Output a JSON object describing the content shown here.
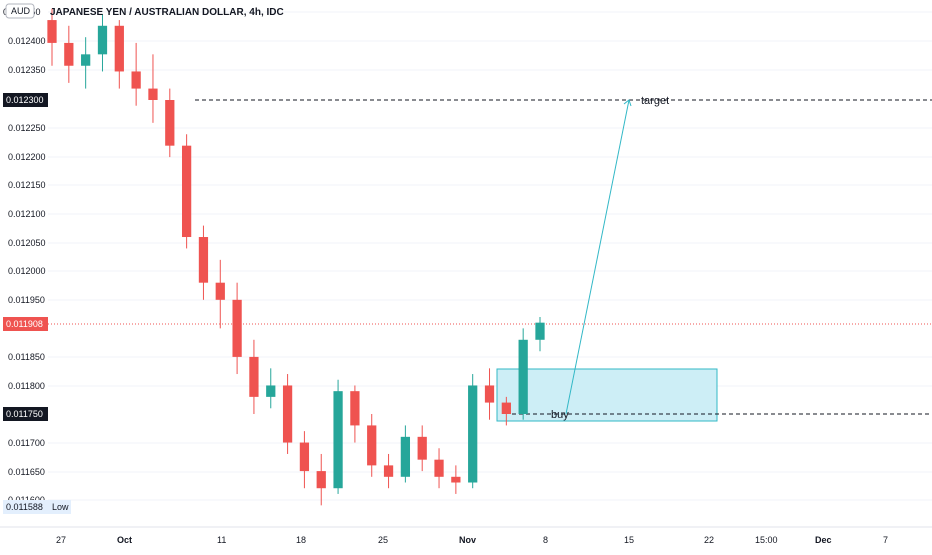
{
  "header": {
    "currency_badge": "AUD",
    "title": "JAPANESE YEN / AUSTRALIAN DOLLAR, 4h, IDC"
  },
  "price_axis": {
    "ticks": [
      "0.012450",
      "0.012400",
      "0.012350",
      "0.012250",
      "0.012200",
      "0.012150",
      "0.012100",
      "0.012050",
      "0.012000",
      "0.011950",
      "0.011850",
      "0.011800",
      "0.011700",
      "0.011650",
      "0.011600"
    ],
    "badges": {
      "target_level": "0.012300",
      "current_price": "0.011908",
      "buy_level": "0.011750",
      "low_value": "0.011588",
      "low_label": "Low"
    }
  },
  "time_axis": {
    "labels": [
      "27",
      "Oct",
      "11",
      "18",
      "25",
      "Nov",
      "8",
      "15",
      "22",
      "15:00",
      "Dec",
      "7"
    ]
  },
  "annotations": {
    "target_label": "target",
    "buy_label": "buy"
  },
  "colors": {
    "up": "#26a69a",
    "down": "#ef5350",
    "box_fill": "#cdeef6",
    "box_border": "#32b8c6",
    "arrow": "#32b8c6",
    "current_price_badge": "#ef5350",
    "level_badge": "#131722",
    "low_badge": "#e3effd"
  },
  "chart_data": {
    "type": "candlestick",
    "title": "JAPANESE YEN / AUSTRALIAN DOLLAR, 4h, IDC",
    "xlabel": "",
    "ylabel": "",
    "x_axis_labels": [
      "27",
      "Oct",
      "11",
      "18",
      "25",
      "Nov",
      "8",
      "15",
      "22",
      "15:00",
      "Dec",
      "7"
    ],
    "ylim": [
      0.0116,
      0.01245
    ],
    "price_series": [
      {
        "date": "Sep 28",
        "open": 0.01244,
        "high": 0.01246,
        "low": 0.01236,
        "close": 0.0124
      },
      {
        "date": "Oct 1",
        "open": 0.0124,
        "high": 0.01243,
        "low": 0.01233,
        "close": 0.01236
      },
      {
        "date": "Oct 4",
        "open": 0.01236,
        "high": 0.01241,
        "low": 0.01232,
        "close": 0.01238
      },
      {
        "date": "Oct 6",
        "open": 0.01238,
        "high": 0.01245,
        "low": 0.01235,
        "close": 0.01243
      },
      {
        "date": "Oct 8",
        "open": 0.01243,
        "high": 0.01244,
        "low": 0.01232,
        "close": 0.01235
      },
      {
        "date": "Oct 9",
        "open": 0.01235,
        "high": 0.0124,
        "low": 0.01229,
        "close": 0.01232
      },
      {
        "date": "Oct 10",
        "open": 0.01232,
        "high": 0.01238,
        "low": 0.01226,
        "close": 0.0123
      },
      {
        "date": "Oct 12",
        "open": 0.0123,
        "high": 0.01232,
        "low": 0.0122,
        "close": 0.01222
      },
      {
        "date": "Oct 13",
        "open": 0.01222,
        "high": 0.01224,
        "low": 0.01204,
        "close": 0.01206
      },
      {
        "date": "Oct 14",
        "open": 0.01206,
        "high": 0.01208,
        "low": 0.01195,
        "close": 0.01198
      },
      {
        "date": "Oct 15",
        "open": 0.01198,
        "high": 0.01202,
        "low": 0.0119,
        "close": 0.01195
      },
      {
        "date": "Oct 17",
        "open": 0.01195,
        "high": 0.01198,
        "low": 0.01182,
        "close": 0.01185
      },
      {
        "date": "Oct 18",
        "open": 0.01185,
        "high": 0.01188,
        "low": 0.01175,
        "close": 0.01178
      },
      {
        "date": "Oct 19",
        "open": 0.01178,
        "high": 0.01183,
        "low": 0.01176,
        "close": 0.0118
      },
      {
        "date": "Oct 20",
        "open": 0.0118,
        "high": 0.01182,
        "low": 0.01168,
        "close": 0.0117
      },
      {
        "date": "Oct 21",
        "open": 0.0117,
        "high": 0.01172,
        "low": 0.01162,
        "close": 0.01165
      },
      {
        "date": "Oct 22",
        "open": 0.01165,
        "high": 0.01168,
        "low": 0.01159,
        "close": 0.01162
      },
      {
        "date": "Oct 24",
        "open": 0.01162,
        "high": 0.01181,
        "low": 0.01161,
        "close": 0.01179
      },
      {
        "date": "Oct 25",
        "open": 0.01179,
        "high": 0.0118,
        "low": 0.0117,
        "close": 0.01173
      },
      {
        "date": "Oct 26",
        "open": 0.01173,
        "high": 0.01175,
        "low": 0.01164,
        "close": 0.01166
      },
      {
        "date": "Oct 27",
        "open": 0.01166,
        "high": 0.01168,
        "low": 0.01162,
        "close": 0.01164
      },
      {
        "date": "Oct 28",
        "open": 0.01164,
        "high": 0.01173,
        "low": 0.01163,
        "close": 0.01171
      },
      {
        "date": "Oct 29",
        "open": 0.01171,
        "high": 0.01173,
        "low": 0.01165,
        "close": 0.01167
      },
      {
        "date": "Oct 31",
        "open": 0.01167,
        "high": 0.01169,
        "low": 0.01162,
        "close": 0.01164
      },
      {
        "date": "Nov 1",
        "open": 0.01164,
        "high": 0.01166,
        "low": 0.01161,
        "close": 0.01163
      },
      {
        "date": "Nov 2",
        "open": 0.01163,
        "high": 0.01182,
        "low": 0.01162,
        "close": 0.0118
      },
      {
        "date": "Nov 3",
        "open": 0.0118,
        "high": 0.01183,
        "low": 0.01174,
        "close": 0.01177
      },
      {
        "date": "Nov 4",
        "open": 0.01177,
        "high": 0.01178,
        "low": 0.01173,
        "close": 0.01175
      },
      {
        "date": "Nov 5",
        "open": 0.01175,
        "high": 0.0119,
        "low": 0.01174,
        "close": 0.01188
      },
      {
        "date": "Nov 6",
        "open": 0.01188,
        "high": 0.01192,
        "low": 0.01186,
        "close": 0.01191
      }
    ],
    "levels": [
      {
        "label": "target",
        "price": 0.0123
      },
      {
        "label": "buy",
        "price": 0.01175
      }
    ],
    "buy_zone": {
      "price_low": 0.01174,
      "price_high": 0.01183,
      "date_start": "Nov 3",
      "date_end": "Nov 22"
    },
    "projection": {
      "from": {
        "date": "Nov 9",
        "price": 0.01175
      },
      "to": {
        "date": "Nov 15",
        "price": 0.0123
      }
    },
    "current_price": 0.011908,
    "low": 0.011588,
    "grid": true
  }
}
